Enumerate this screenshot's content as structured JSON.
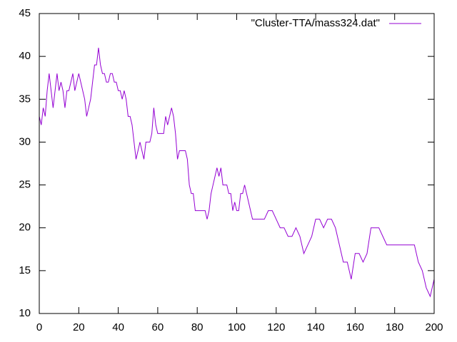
{
  "chart_data": {
    "type": "line",
    "legend": "top-right",
    "x": [
      0,
      1,
      2,
      3,
      4,
      5,
      6,
      7,
      8,
      9,
      10,
      11,
      12,
      13,
      14,
      15,
      16,
      17,
      18,
      19,
      20,
      21,
      22,
      23,
      24,
      25,
      26,
      27,
      28,
      29,
      30,
      31,
      32,
      33,
      34,
      35,
      36,
      37,
      38,
      39,
      40,
      41,
      42,
      43,
      44,
      45,
      46,
      47,
      48,
      49,
      50,
      51,
      52,
      53,
      54,
      55,
      56,
      57,
      58,
      59,
      60,
      61,
      62,
      63,
      64,
      65,
      66,
      67,
      68,
      69,
      70,
      71,
      72,
      73,
      74,
      75,
      76,
      77,
      78,
      79,
      80,
      81,
      82,
      83,
      84,
      85,
      86,
      87,
      88,
      89,
      90,
      91,
      92,
      93,
      94,
      95,
      96,
      97,
      98,
      99,
      100,
      101,
      102,
      103,
      104,
      105,
      106,
      107,
      108,
      110,
      112,
      114,
      116,
      118,
      120,
      122,
      124,
      126,
      128,
      130,
      132,
      134,
      136,
      138,
      140,
      142,
      144,
      146,
      148,
      150,
      152,
      154,
      156,
      158,
      160,
      162,
      164,
      166,
      168,
      170,
      172,
      174,
      176,
      178,
      180,
      182,
      184,
      186,
      188,
      190,
      192,
      194,
      196,
      198,
      200
    ],
    "series": [
      {
        "name": "\"Cluster-TTA/mass324.dat\"",
        "color": "#9400d3",
        "values": [
          33,
          32,
          34,
          33,
          36,
          38,
          36,
          34,
          36,
          38,
          36,
          37,
          36,
          34,
          36,
          36,
          37,
          38,
          36,
          37,
          38,
          37,
          36,
          35,
          33,
          34,
          35,
          37,
          39,
          39,
          41,
          39,
          38,
          38,
          37,
          37,
          38,
          38,
          37,
          37,
          36,
          36,
          35,
          36,
          35,
          33,
          33,
          32,
          30,
          28,
          29,
          30,
          29,
          28,
          30,
          30,
          30,
          31,
          34,
          32,
          31,
          31,
          31,
          31,
          33,
          32,
          33,
          34,
          33,
          31,
          28,
          29,
          29,
          29,
          29,
          28,
          25,
          24,
          24,
          22,
          22,
          22,
          22,
          22,
          22,
          21,
          22,
          24,
          25,
          26,
          27,
          26,
          27,
          25,
          25,
          25,
          24,
          24,
          22,
          23,
          22,
          22,
          24,
          24,
          25,
          24,
          23,
          22,
          21,
          21,
          21,
          21,
          22,
          22,
          21,
          20,
          20,
          19,
          19,
          20,
          19,
          17,
          18,
          19,
          21,
          21,
          20,
          21,
          21,
          20,
          18,
          16,
          16,
          14,
          17,
          17,
          16,
          17,
          20,
          20,
          20,
          19,
          18,
          18,
          18,
          18,
          18,
          18,
          18,
          18,
          16,
          15,
          13,
          12,
          14
        ]
      }
    ],
    "xlim": [
      0,
      200
    ],
    "xticks": [
      0,
      20,
      40,
      60,
      80,
      100,
      120,
      140,
      160,
      180,
      200
    ],
    "ylim": [
      10,
      45
    ],
    "yticks": [
      10,
      15,
      20,
      25,
      30,
      35,
      40,
      45
    ]
  }
}
